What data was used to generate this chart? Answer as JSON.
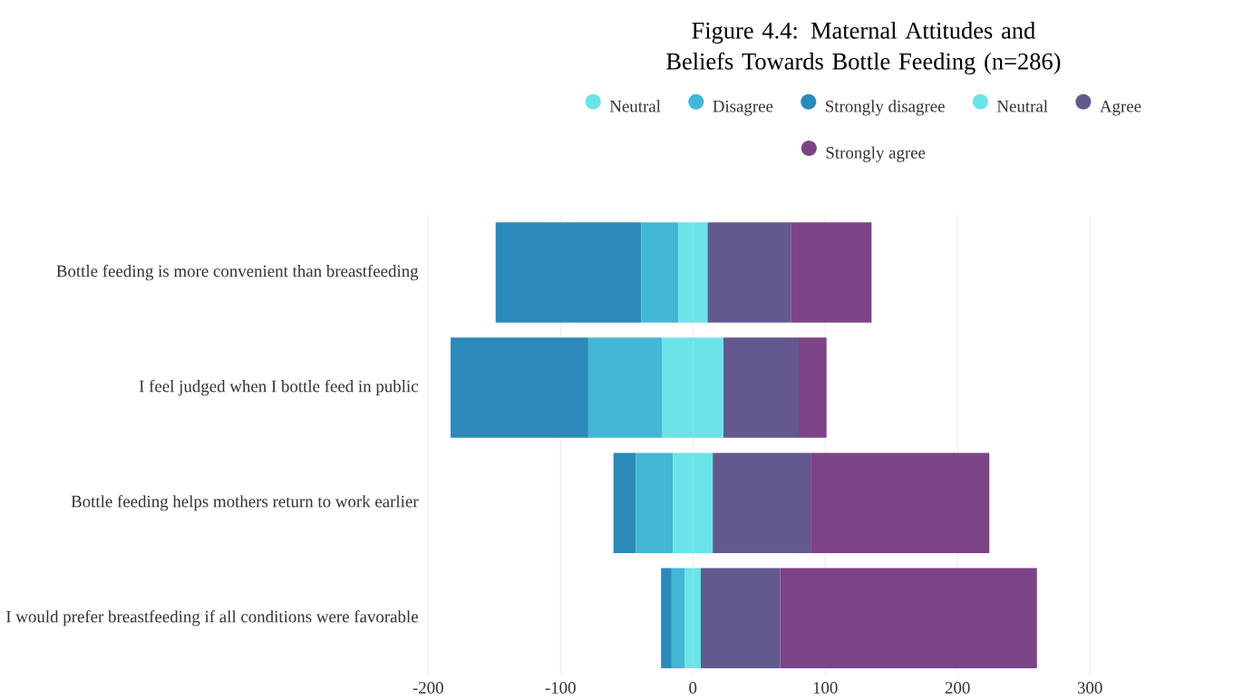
{
  "chart_data": {
    "type": "bar",
    "orientation": "horizontal",
    "stacked": true,
    "title": "Figure 4.4: Maternal Attitudes and Beliefs Towards Bottle Feeding (n=286)",
    "categories": [
      "Bottle feeding is more convenient than breastfeeding",
      "I feel judged when I bottle feed in public",
      "Bottle feeding helps mothers return to work earlier",
      "I would prefer breastfeeding if all conditions were favorable"
    ],
    "series": [
      {
        "name": "Neutral",
        "color": "#6ae4e8",
        "values": [
          -11,
          -23,
          -15,
          -6
        ]
      },
      {
        "name": "Disagree",
        "color": "#42b7d6",
        "values": [
          -28,
          -56,
          -28,
          -10
        ]
      },
      {
        "name": "Strongly disagree",
        "color": "#2b8ab9",
        "values": [
          -110,
          -104,
          -17,
          -8
        ]
      },
      {
        "name": "Neutral",
        "color": "#6ae4e8",
        "values": [
          11,
          23,
          15,
          6
        ]
      },
      {
        "name": "Agree",
        "color": "#63598f",
        "values": [
          63,
          57,
          74,
          60
        ]
      },
      {
        "name": "Strongly agree",
        "color": "#7d4387",
        "values": [
          61,
          21,
          135,
          194
        ]
      }
    ],
    "xlim": [
      -200,
      300
    ],
    "xticks": [
      -200,
      -100,
      0,
      100,
      200,
      300
    ],
    "grid": "x",
    "legend": "top"
  }
}
